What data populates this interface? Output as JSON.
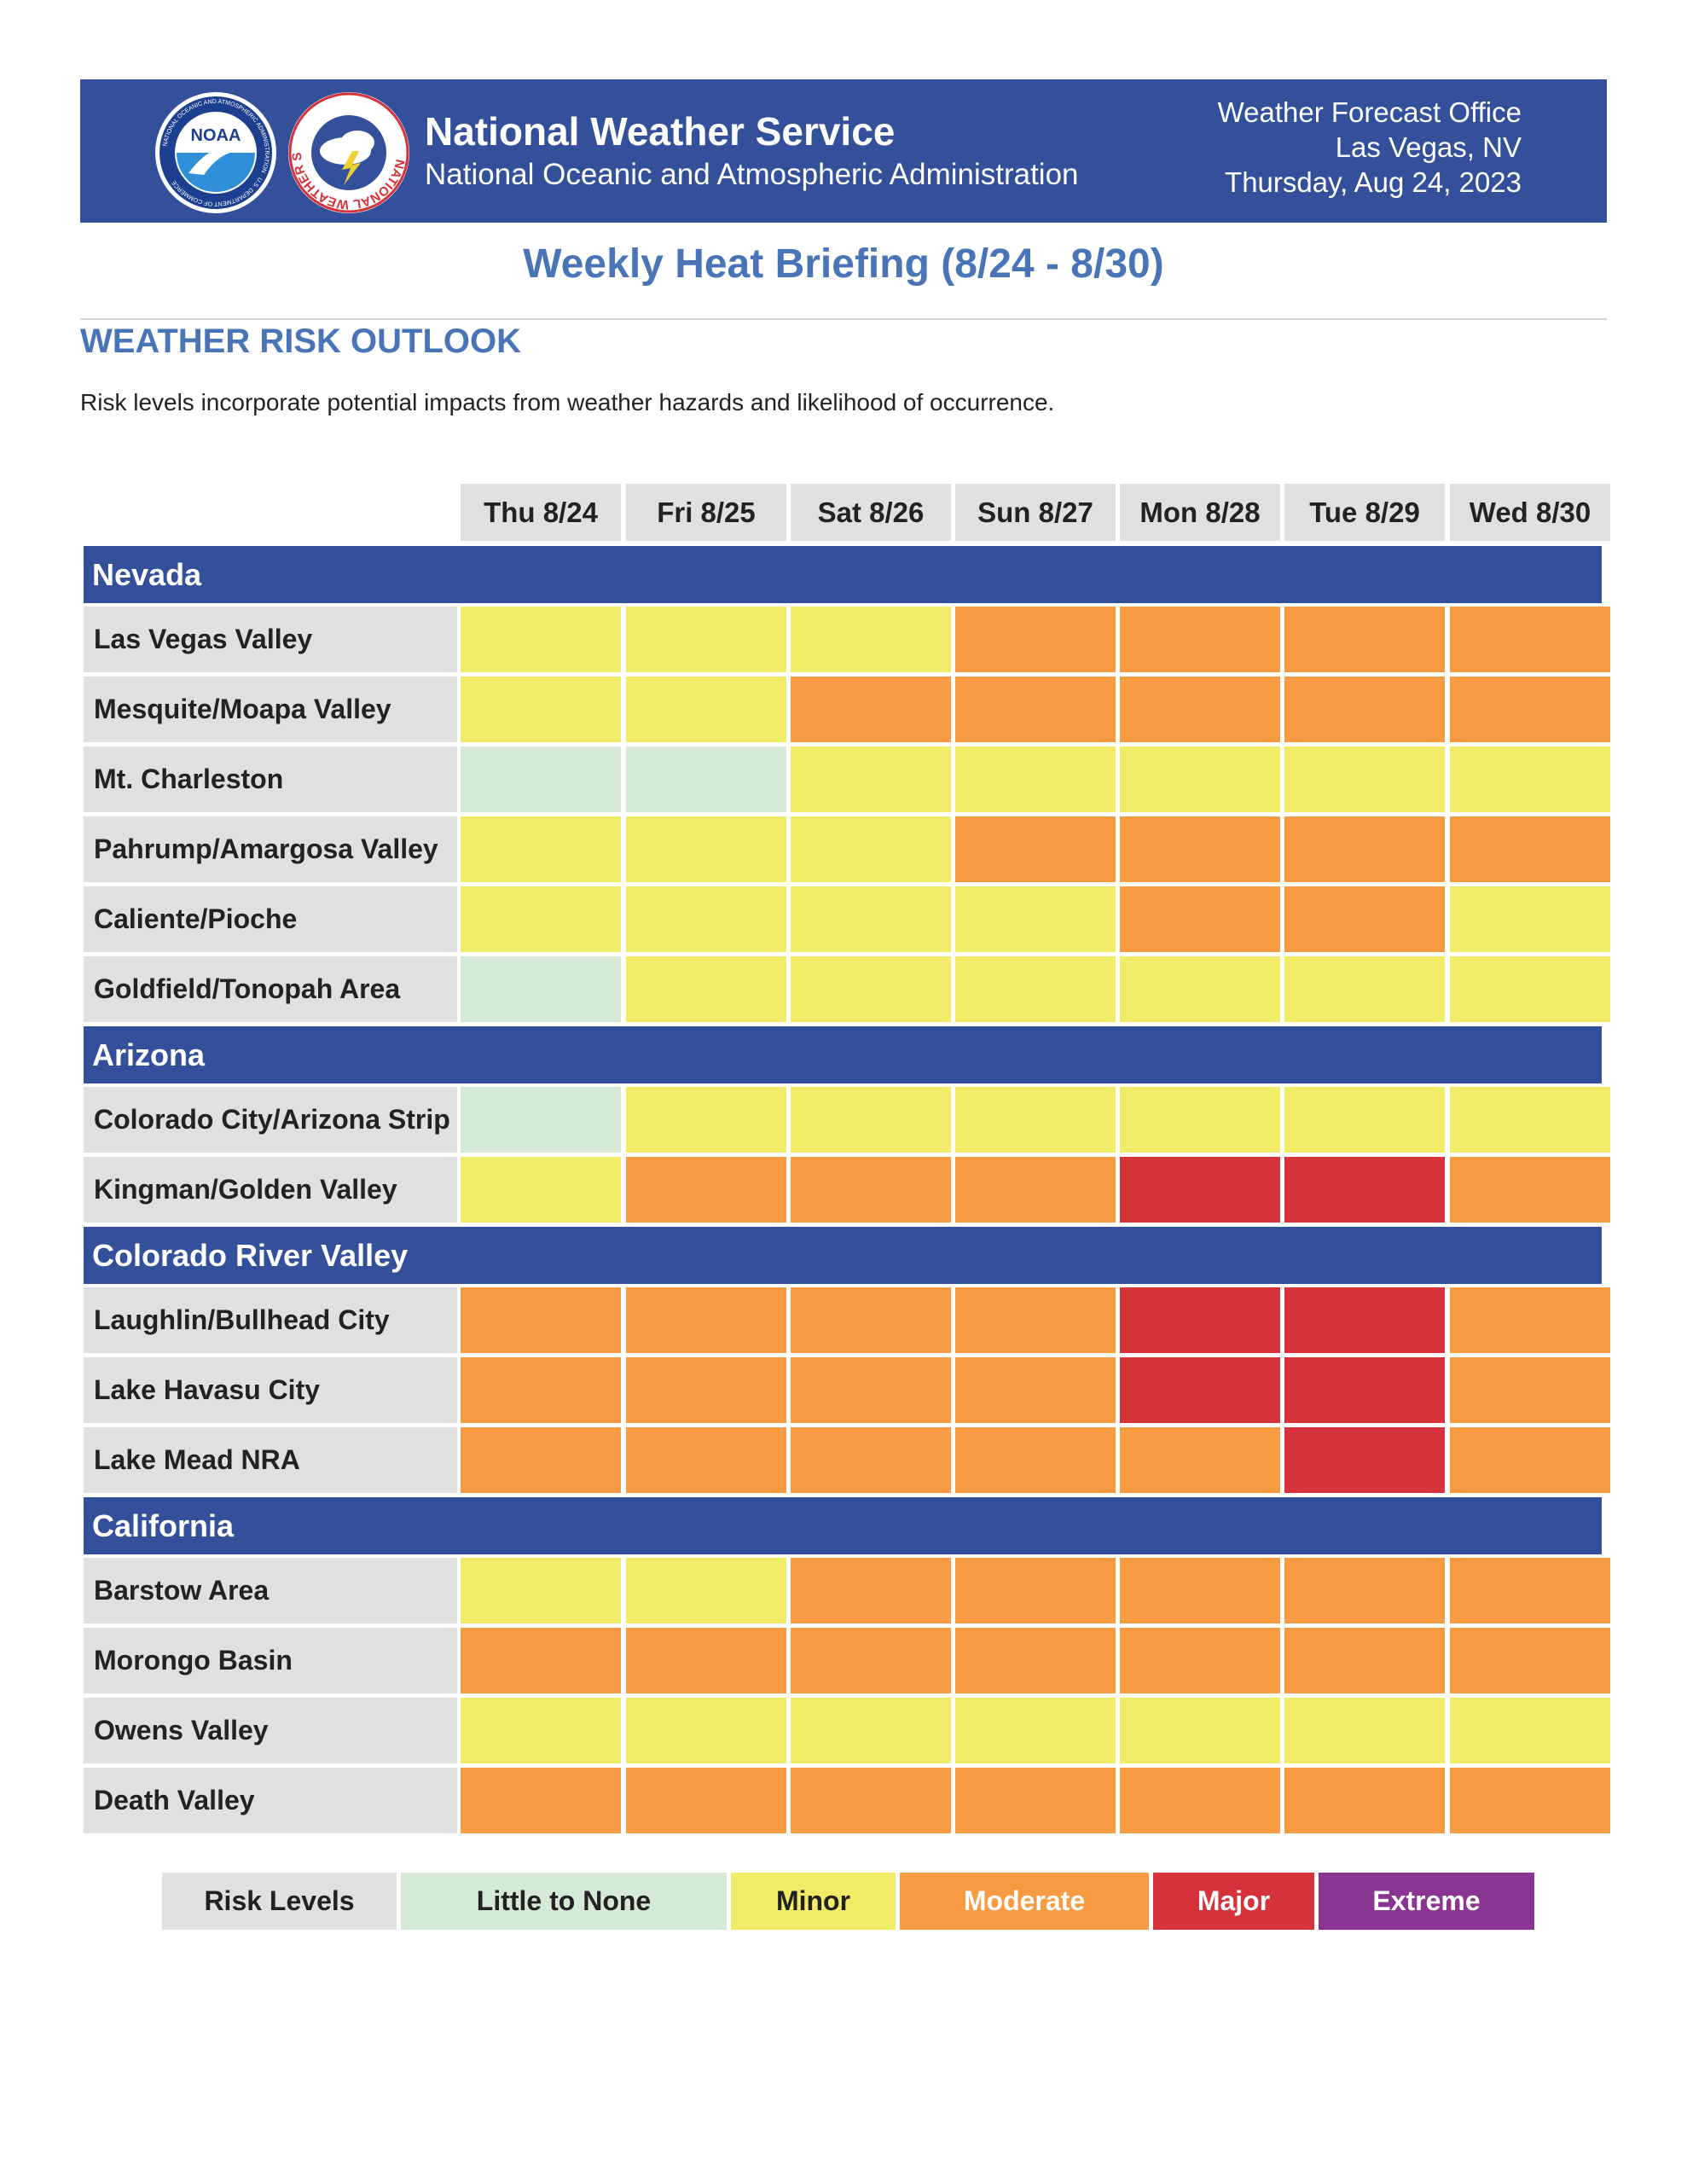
{
  "header": {
    "agency_name": "National Weather Service",
    "agency_parent": "National Oceanic and Atmospheric Administration",
    "office_label": "Weather Forecast Office",
    "office_location": "Las Vegas, NV",
    "issue_date": "Thursday, Aug 24, 2023",
    "noaa_logo_text": "NOAA",
    "noaa_logo_ring_text": "NATIONAL OCEANIC AND ATMOSPHERIC ADMINISTRATION · U.S. DEPARTMENT OF COMMERCE",
    "nws_logo_ring_text": "NATIONAL WEATHER SERVICE"
  },
  "document": {
    "title": "Weekly Heat Briefing (8/24 - 8/30)",
    "section_heading": "WEATHER RISK OUTLOOK",
    "description": "Risk levels incorporate potential impacts from weather hazards and likelihood of occurrence."
  },
  "days": [
    "Thu 8/24",
    "Fri 8/25",
    "Sat 8/26",
    "Sun 8/27",
    "Mon 8/28",
    "Tue 8/29",
    "Wed 8/30"
  ],
  "regions": [
    {
      "name": "Nevada",
      "rows": [
        {
          "location": "Las Vegas Valley",
          "risks": [
            "Minor",
            "Minor",
            "Minor",
            "Moderate",
            "Moderate",
            "Moderate",
            "Moderate"
          ]
        },
        {
          "location": "Mesquite/Moapa Valley",
          "risks": [
            "Minor",
            "Minor",
            "Moderate",
            "Moderate",
            "Moderate",
            "Moderate",
            "Moderate"
          ]
        },
        {
          "location": "Mt. Charleston",
          "risks": [
            "Little to None",
            "Little to None",
            "Minor",
            "Minor",
            "Minor",
            "Minor",
            "Minor"
          ]
        },
        {
          "location": "Pahrump/Amargosa Valley",
          "risks": [
            "Minor",
            "Minor",
            "Minor",
            "Moderate",
            "Moderate",
            "Moderate",
            "Moderate"
          ]
        },
        {
          "location": "Caliente/Pioche",
          "risks": [
            "Minor",
            "Minor",
            "Minor",
            "Minor",
            "Moderate",
            "Moderate",
            "Minor"
          ]
        },
        {
          "location": "Goldfield/Tonopah Area",
          "risks": [
            "Little to None",
            "Minor",
            "Minor",
            "Minor",
            "Minor",
            "Minor",
            "Minor"
          ]
        }
      ]
    },
    {
      "name": "Arizona",
      "rows": [
        {
          "location": "Colorado City/Arizona Strip",
          "risks": [
            "Little to None",
            "Minor",
            "Minor",
            "Minor",
            "Minor",
            "Minor",
            "Minor"
          ]
        },
        {
          "location": "Kingman/Golden Valley",
          "risks": [
            "Minor",
            "Moderate",
            "Moderate",
            "Moderate",
            "Major",
            "Major",
            "Moderate"
          ]
        }
      ]
    },
    {
      "name": "Colorado River Valley",
      "rows": [
        {
          "location": "Laughlin/Bullhead City",
          "risks": [
            "Moderate",
            "Moderate",
            "Moderate",
            "Moderate",
            "Major",
            "Major",
            "Moderate"
          ]
        },
        {
          "location": "Lake Havasu City",
          "risks": [
            "Moderate",
            "Moderate",
            "Moderate",
            "Moderate",
            "Major",
            "Major",
            "Moderate"
          ]
        },
        {
          "location": "Lake Mead NRA",
          "risks": [
            "Moderate",
            "Moderate",
            "Moderate",
            "Moderate",
            "Moderate",
            "Major",
            "Moderate"
          ]
        }
      ]
    },
    {
      "name": "California",
      "rows": [
        {
          "location": "Barstow Area",
          "risks": [
            "Minor",
            "Minor",
            "Moderate",
            "Moderate",
            "Moderate",
            "Moderate",
            "Moderate"
          ]
        },
        {
          "location": "Morongo Basin",
          "risks": [
            "Moderate",
            "Moderate",
            "Moderate",
            "Moderate",
            "Moderate",
            "Moderate",
            "Moderate"
          ]
        },
        {
          "location": "Owens Valley",
          "risks": [
            "Minor",
            "Minor",
            "Minor",
            "Minor",
            "Minor",
            "Minor",
            "Minor"
          ]
        },
        {
          "location": "Death Valley",
          "risks": [
            "Moderate",
            "Moderate",
            "Moderate",
            "Moderate",
            "Moderate",
            "Moderate",
            "Moderate"
          ]
        }
      ]
    }
  ],
  "legend": {
    "title": "Risk Levels",
    "levels": [
      {
        "label": "Little to None",
        "color": "#d4ead5",
        "text_color": "#222222"
      },
      {
        "label": "Minor",
        "color": "#f0ec68",
        "text_color": "#222222"
      },
      {
        "label": "Moderate",
        "color": "#f79b42",
        "text_color": "#ffffff"
      },
      {
        "label": "Major",
        "color": "#d5323a",
        "text_color": "#ffffff"
      },
      {
        "label": "Extreme",
        "color": "#8b3593",
        "text_color": "#ffffff"
      }
    ]
  },
  "colors": {
    "banner": "#34509a",
    "heading_blue": "#4a74b8",
    "label_gray": "#e0e0e0"
  }
}
